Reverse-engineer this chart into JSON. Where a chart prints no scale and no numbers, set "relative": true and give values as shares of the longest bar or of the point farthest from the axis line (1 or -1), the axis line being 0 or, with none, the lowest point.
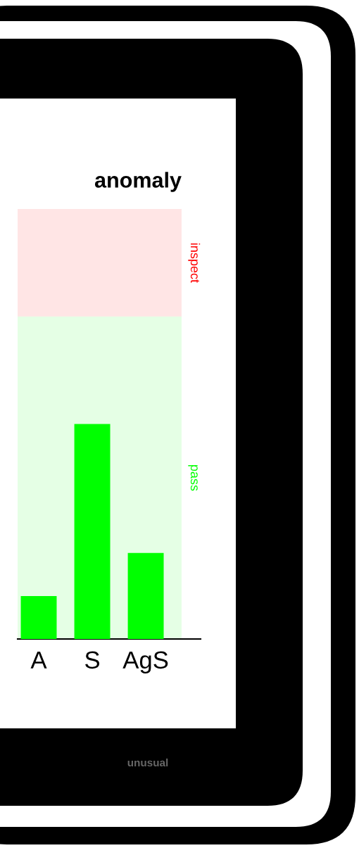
{
  "chart_data": {
    "type": "bar",
    "title": "anomaly",
    "categories": [
      "A",
      "S",
      "AgS"
    ],
    "values": [
      0.2,
      1,
      0.4
    ],
    "color": "#00ff00",
    "relative": true,
    "bands": [
      {
        "axis": "y",
        "from": 1.5,
        "to": 2.0,
        "label": "inspect",
        "color": "#ff0000"
      },
      {
        "axis": "y",
        "from": 0,
        "to": 1.5,
        "label": "pass",
        "color": "#00ff00"
      }
    ],
    "annotations": [
      "unusual"
    ],
    "grid": false,
    "legend": false
  }
}
